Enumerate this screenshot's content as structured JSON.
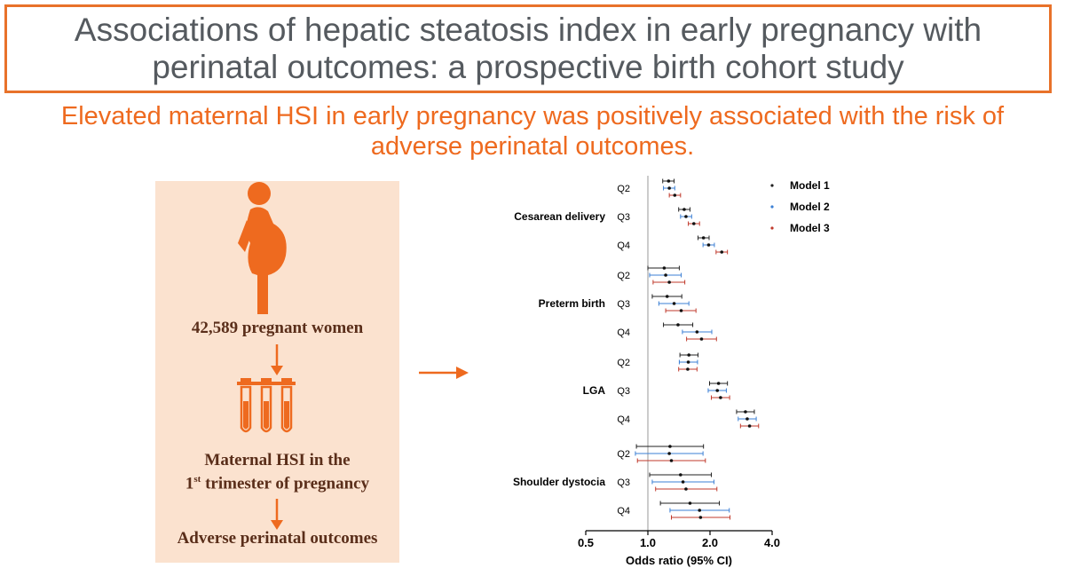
{
  "header": {
    "title": "Associations of hepatic steatosis index in early pregnancy with perinatal outcomes: a prospective birth cohort study",
    "subtitle": "Elevated maternal HSI in early pregnancy was positively associated with the risk of adverse perinatal outcomes."
  },
  "flow": {
    "women_label": "42,589 pregnant women",
    "hsi_line1": "Maternal HSI in the",
    "hsi_line2_num": "1",
    "hsi_line2_sup": "st",
    "hsi_line2_rest": " trimester of pregnancy",
    "outcome_label": "Adverse perinatal outcomes"
  },
  "colors": {
    "accent": "#ee6a1f",
    "panel_bg": "#fbe2cf",
    "panel_text": "#5a2e1a",
    "title_gray": "#555a5f",
    "model1": "#222222",
    "model2": "#3b7fd4",
    "model3": "#c0392b"
  },
  "chart_data": {
    "type": "forest",
    "xlabel": "Odds ratio (95% CI)",
    "x_scale": "log",
    "xlim": [
      0.5,
      4.0
    ],
    "xticks": [
      0.5,
      1.0,
      2.0,
      4.0
    ],
    "xtick_labels": [
      "0.5",
      "1.0",
      "2.0",
      "4.0"
    ],
    "reference_line": 1.0,
    "legend_position": "top-right",
    "series": [
      {
        "name": "Model 1",
        "color": "#222222"
      },
      {
        "name": "Model 2",
        "color": "#3b7fd4"
      },
      {
        "name": "Model 3",
        "color": "#c0392b"
      }
    ],
    "outcomes": [
      {
        "name": "Cesarean delivery",
        "quartiles": [
          {
            "label": "Q2",
            "estimates": [
              [
                1.26,
                1.18,
                1.34
              ],
              [
                1.27,
                1.19,
                1.35
              ],
              [
                1.35,
                1.27,
                1.44
              ]
            ]
          },
          {
            "label": "Q3",
            "estimates": [
              [
                1.5,
                1.41,
                1.6
              ],
              [
                1.53,
                1.44,
                1.63
              ],
              [
                1.67,
                1.57,
                1.78
              ]
            ]
          },
          {
            "label": "Q4",
            "estimates": [
              [
                1.86,
                1.75,
                1.98
              ],
              [
                1.97,
                1.85,
                2.1
              ],
              [
                2.28,
                2.14,
                2.43
              ]
            ]
          }
        ]
      },
      {
        "name": "Preterm birth",
        "quartiles": [
          {
            "label": "Q2",
            "estimates": [
              [
                1.2,
                1.0,
                1.42
              ],
              [
                1.22,
                1.02,
                1.45
              ],
              [
                1.27,
                1.06,
                1.51
              ]
            ]
          },
          {
            "label": "Q3",
            "estimates": [
              [
                1.24,
                1.05,
                1.46
              ],
              [
                1.34,
                1.13,
                1.58
              ],
              [
                1.45,
                1.22,
                1.71
              ]
            ]
          },
          {
            "label": "Q4",
            "estimates": [
              [
                1.4,
                1.19,
                1.65
              ],
              [
                1.73,
                1.47,
                2.04
              ],
              [
                1.82,
                1.54,
                2.15
              ]
            ]
          }
        ]
      },
      {
        "name": "LGA",
        "quartiles": [
          {
            "label": "Q2",
            "estimates": [
              [
                1.58,
                1.43,
                1.75
              ],
              [
                1.57,
                1.42,
                1.74
              ],
              [
                1.56,
                1.41,
                1.73
              ]
            ]
          },
          {
            "label": "Q3",
            "estimates": [
              [
                2.2,
                1.99,
                2.43
              ],
              [
                2.17,
                1.96,
                2.4
              ],
              [
                2.25,
                2.03,
                2.49
              ]
            ]
          },
          {
            "label": "Q4",
            "estimates": [
              [
                2.97,
                2.69,
                3.28
              ],
              [
                3.03,
                2.74,
                3.35
              ],
              [
                3.11,
                2.81,
                3.44
              ]
            ]
          }
        ]
      },
      {
        "name": "Shoulder dystocia",
        "quartiles": [
          {
            "label": "Q2",
            "estimates": [
              [
                1.28,
                0.88,
                1.86
              ],
              [
                1.27,
                0.87,
                1.85
              ],
              [
                1.3,
                0.89,
                1.9
              ]
            ]
          },
          {
            "label": "Q3",
            "estimates": [
              [
                1.44,
                1.02,
                2.03
              ],
              [
                1.48,
                1.05,
                2.09
              ],
              [
                1.53,
                1.09,
                2.16
              ]
            ]
          },
          {
            "label": "Q4",
            "estimates": [
              [
                1.6,
                1.15,
                2.22
              ],
              [
                1.78,
                1.28,
                2.48
              ],
              [
                1.8,
                1.3,
                2.5
              ]
            ]
          }
        ]
      }
    ]
  }
}
